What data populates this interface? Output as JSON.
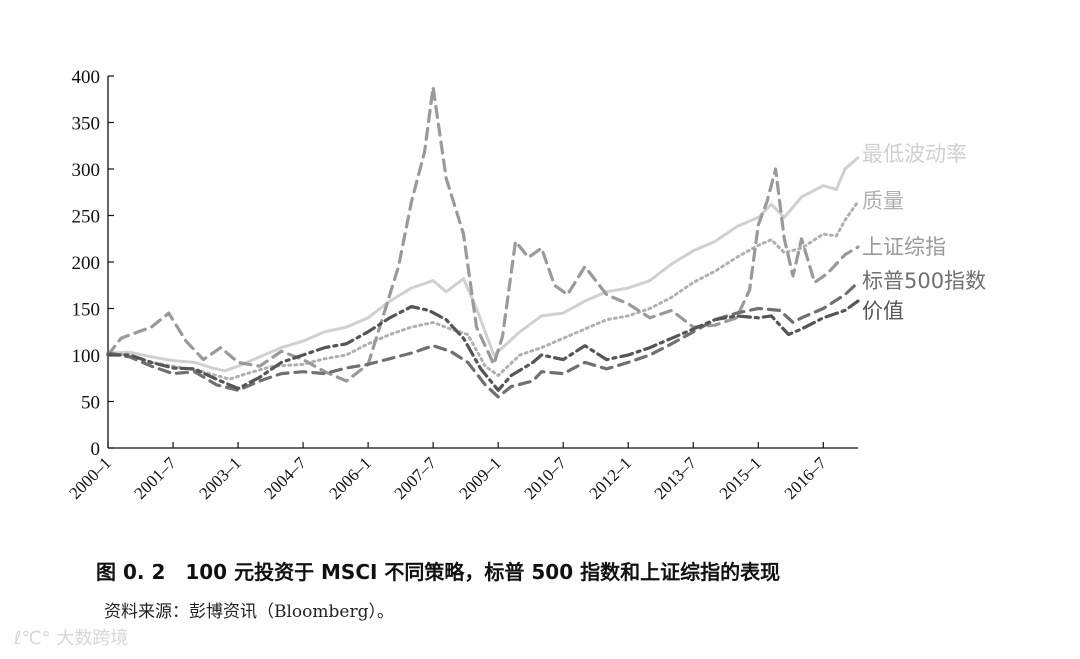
{
  "chart_data": {
    "type": "line",
    "yticks": [
      "0",
      "50",
      "100",
      "150",
      "200",
      "250",
      "300",
      "350",
      "400"
    ],
    "ylim": [
      0,
      400
    ],
    "xticks": [
      "2000–1",
      "2001–7",
      "2003–1",
      "2004–7",
      "2006–1",
      "2007–7",
      "2009–1",
      "2010–7",
      "2012–1",
      "2013–7",
      "2015–1",
      "2016–7"
    ],
    "xlim": [
      2000.0,
      2017.3
    ],
    "grid": false,
    "series": [
      {
        "name": "最低波动率",
        "color": "#d0d0d0",
        "dash": "solid",
        "points": [
          [
            2000.0,
            102
          ],
          [
            2000.5,
            103
          ],
          [
            2001.0,
            98
          ],
          [
            2001.5,
            94
          ],
          [
            2002.0,
            92
          ],
          [
            2002.4,
            86
          ],
          [
            2002.7,
            83
          ],
          [
            2003.0,
            88
          ],
          [
            2003.5,
            98
          ],
          [
            2004.0,
            108
          ],
          [
            2004.5,
            115
          ],
          [
            2005.0,
            125
          ],
          [
            2005.5,
            130
          ],
          [
            2006.0,
            140
          ],
          [
            2006.5,
            158
          ],
          [
            2007.0,
            172
          ],
          [
            2007.5,
            180
          ],
          [
            2007.8,
            168
          ],
          [
            2008.2,
            182
          ],
          [
            2008.5,
            150
          ],
          [
            2008.9,
            100
          ],
          [
            2009.1,
            108
          ],
          [
            2009.5,
            125
          ],
          [
            2010.0,
            142
          ],
          [
            2010.5,
            145
          ],
          [
            2011.0,
            158
          ],
          [
            2011.5,
            168
          ],
          [
            2012.0,
            172
          ],
          [
            2012.5,
            180
          ],
          [
            2013.0,
            198
          ],
          [
            2013.5,
            212
          ],
          [
            2014.0,
            222
          ],
          [
            2014.5,
            238
          ],
          [
            2015.0,
            248
          ],
          [
            2015.3,
            262
          ],
          [
            2015.6,
            248
          ],
          [
            2016.0,
            270
          ],
          [
            2016.5,
            282
          ],
          [
            2016.8,
            278
          ],
          [
            2017.0,
            300
          ],
          [
            2017.3,
            312
          ]
        ]
      },
      {
        "name": "质量",
        "color": "#b0b0b0",
        "dash": "dotted",
        "points": [
          [
            2000.0,
            102
          ],
          [
            2000.5,
            100
          ],
          [
            2001.0,
            92
          ],
          [
            2001.5,
            88
          ],
          [
            2002.0,
            84
          ],
          [
            2002.5,
            78
          ],
          [
            2002.8,
            74
          ],
          [
            2003.2,
            80
          ],
          [
            2003.8,
            88
          ],
          [
            2004.5,
            90
          ],
          [
            2005.0,
            96
          ],
          [
            2005.5,
            100
          ],
          [
            2006.0,
            112
          ],
          [
            2006.5,
            122
          ],
          [
            2007.0,
            130
          ],
          [
            2007.5,
            135
          ],
          [
            2007.9,
            128
          ],
          [
            2008.3,
            122
          ],
          [
            2008.7,
            88
          ],
          [
            2009.0,
            78
          ],
          [
            2009.5,
            100
          ],
          [
            2010.0,
            108
          ],
          [
            2010.5,
            118
          ],
          [
            2011.0,
            128
          ],
          [
            2011.5,
            138
          ],
          [
            2012.0,
            142
          ],
          [
            2012.5,
            150
          ],
          [
            2013.0,
            162
          ],
          [
            2013.5,
            178
          ],
          [
            2014.0,
            190
          ],
          [
            2014.5,
            205
          ],
          [
            2015.0,
            218
          ],
          [
            2015.3,
            224
          ],
          [
            2015.6,
            210
          ],
          [
            2016.0,
            215
          ],
          [
            2016.5,
            230
          ],
          [
            2016.8,
            228
          ],
          [
            2017.0,
            245
          ],
          [
            2017.3,
            265
          ]
        ]
      },
      {
        "name": "上证综指",
        "color": "#9a9a9a",
        "dash": "dashed",
        "points": [
          [
            2000.0,
            100
          ],
          [
            2000.3,
            118
          ],
          [
            2000.7,
            125
          ],
          [
            2001.0,
            130
          ],
          [
            2001.4,
            145
          ],
          [
            2001.8,
            115
          ],
          [
            2002.2,
            95
          ],
          [
            2002.6,
            108
          ],
          [
            2003.0,
            92
          ],
          [
            2003.5,
            88
          ],
          [
            2004.0,
            104
          ],
          [
            2004.5,
            95
          ],
          [
            2005.0,
            82
          ],
          [
            2005.5,
            72
          ],
          [
            2006.0,
            90
          ],
          [
            2006.4,
            150
          ],
          [
            2006.7,
            195
          ],
          [
            2007.0,
            265
          ],
          [
            2007.3,
            318
          ],
          [
            2007.5,
            388
          ],
          [
            2007.8,
            290
          ],
          [
            2008.2,
            230
          ],
          [
            2008.5,
            130
          ],
          [
            2008.9,
            90
          ],
          [
            2009.1,
            120
          ],
          [
            2009.4,
            222
          ],
          [
            2009.7,
            205
          ],
          [
            2010.0,
            215
          ],
          [
            2010.3,
            175
          ],
          [
            2010.6,
            165
          ],
          [
            2011.0,
            195
          ],
          [
            2011.5,
            165
          ],
          [
            2012.0,
            155
          ],
          [
            2012.5,
            140
          ],
          [
            2013.0,
            148
          ],
          [
            2013.5,
            130
          ],
          [
            2014.0,
            132
          ],
          [
            2014.5,
            140
          ],
          [
            2014.8,
            170
          ],
          [
            2015.0,
            240
          ],
          [
            2015.2,
            265
          ],
          [
            2015.4,
            300
          ],
          [
            2015.6,
            225
          ],
          [
            2015.8,
            185
          ],
          [
            2016.0,
            225
          ],
          [
            2016.3,
            178
          ],
          [
            2016.6,
            188
          ],
          [
            2017.0,
            208
          ],
          [
            2017.3,
            216
          ]
        ]
      },
      {
        "name": "标普500指数",
        "color": "#707070",
        "dash": "dashed",
        "points": [
          [
            2000.0,
            102
          ],
          [
            2000.5,
            98
          ],
          [
            2001.0,
            88
          ],
          [
            2001.5,
            80
          ],
          [
            2002.0,
            82
          ],
          [
            2002.5,
            68
          ],
          [
            2003.0,
            62
          ],
          [
            2003.5,
            72
          ],
          [
            2004.0,
            80
          ],
          [
            2004.5,
            82
          ],
          [
            2005.0,
            80
          ],
          [
            2005.5,
            86
          ],
          [
            2006.0,
            90
          ],
          [
            2006.5,
            96
          ],
          [
            2007.0,
            102
          ],
          [
            2007.5,
            110
          ],
          [
            2007.9,
            104
          ],
          [
            2008.3,
            92
          ],
          [
            2008.7,
            68
          ],
          [
            2009.0,
            55
          ],
          [
            2009.3,
            66
          ],
          [
            2009.8,
            72
          ],
          [
            2010.0,
            82
          ],
          [
            2010.5,
            80
          ],
          [
            2011.0,
            92
          ],
          [
            2011.5,
            85
          ],
          [
            2012.0,
            92
          ],
          [
            2012.5,
            100
          ],
          [
            2013.0,
            112
          ],
          [
            2013.5,
            125
          ],
          [
            2014.0,
            138
          ],
          [
            2014.5,
            145
          ],
          [
            2015.0,
            150
          ],
          [
            2015.5,
            148
          ],
          [
            2015.8,
            135
          ],
          [
            2016.0,
            140
          ],
          [
            2016.5,
            150
          ],
          [
            2017.0,
            165
          ],
          [
            2017.3,
            178
          ]
        ]
      },
      {
        "name": "价值",
        "color": "#555555",
        "dash": "dashdot",
        "points": [
          [
            2000.0,
            100
          ],
          [
            2000.5,
            100
          ],
          [
            2001.0,
            92
          ],
          [
            2001.5,
            86
          ],
          [
            2002.0,
            85
          ],
          [
            2002.5,
            74
          ],
          [
            2003.0,
            64
          ],
          [
            2003.5,
            76
          ],
          [
            2004.0,
            92
          ],
          [
            2004.5,
            100
          ],
          [
            2005.0,
            108
          ],
          [
            2005.5,
            112
          ],
          [
            2006.0,
            125
          ],
          [
            2006.5,
            140
          ],
          [
            2007.0,
            152
          ],
          [
            2007.4,
            148
          ],
          [
            2007.8,
            138
          ],
          [
            2008.2,
            118
          ],
          [
            2008.6,
            85
          ],
          [
            2009.0,
            62
          ],
          [
            2009.3,
            78
          ],
          [
            2009.8,
            92
          ],
          [
            2010.0,
            100
          ],
          [
            2010.5,
            95
          ],
          [
            2011.0,
            110
          ],
          [
            2011.5,
            95
          ],
          [
            2012.0,
            100
          ],
          [
            2012.5,
            108
          ],
          [
            2013.0,
            118
          ],
          [
            2013.5,
            128
          ],
          [
            2014.0,
            138
          ],
          [
            2014.5,
            142
          ],
          [
            2015.0,
            140
          ],
          [
            2015.3,
            142
          ],
          [
            2015.7,
            122
          ],
          [
            2016.0,
            128
          ],
          [
            2016.5,
            140
          ],
          [
            2017.0,
            148
          ],
          [
            2017.3,
            158
          ]
        ]
      }
    ]
  },
  "caption": "图 0. 2　100 元投资于 MSCI 不同策略，标普 500 指数和上证综指的表现",
  "source": "资料来源：彭博资讯（Bloomberg）。",
  "watermark": "大数跨境"
}
